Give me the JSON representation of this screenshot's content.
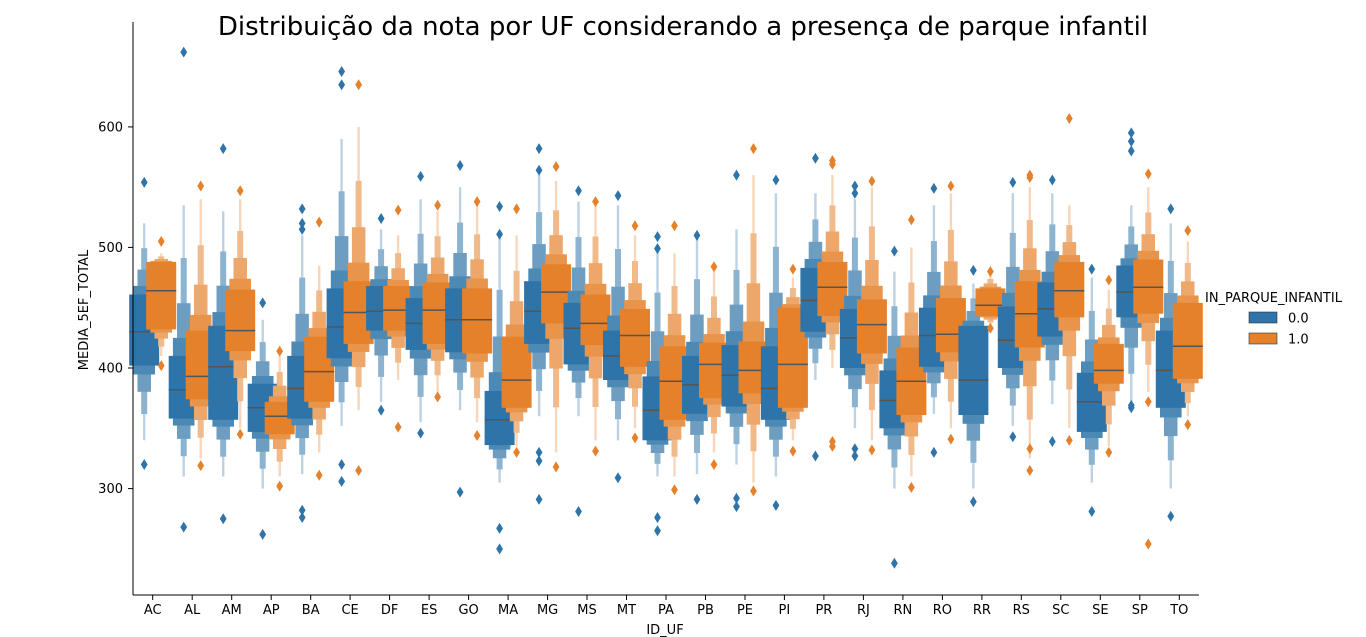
{
  "chart_data": {
    "type": "boxen",
    "title": "Distribuição da nota por UF considerando a presença de parque infantil",
    "xlabel": "ID_UF",
    "ylabel": "MEDIA_5EF_TOTAL",
    "ylim": [
      210,
      660
    ],
    "yticks": [
      300,
      400,
      500,
      600
    ],
    "grid": false,
    "legend": {
      "title": "IN_PARQUE_INFANTIL",
      "placement": "right"
    },
    "categories": [
      "AC",
      "AL",
      "AM",
      "AP",
      "BA",
      "CE",
      "DF",
      "ES",
      "GO",
      "MA",
      "MG",
      "MS",
      "MT",
      "PA",
      "PB",
      "PE",
      "PI",
      "PR",
      "RJ",
      "RN",
      "RO",
      "RR",
      "RS",
      "SC",
      "SE",
      "SP",
      "TO"
    ],
    "series": [
      {
        "name": "0.0",
        "color": "#2e74a8",
        "median": [
          430,
          382,
          401,
          367,
          383,
          434,
          447,
          437,
          440,
          357,
          447,
          433,
          410,
          365,
          386,
          394,
          383,
          456,
          425,
          373,
          427,
          390,
          423,
          449,
          372,
          463,
          398
        ],
        "q1": [
          402,
          358,
          357,
          347,
          358,
          408,
          431,
          415,
          413,
          336,
          420,
          403,
          390,
          340,
          362,
          368,
          357,
          430,
          400,
          350,
          401,
          361,
          400,
          426,
          347,
          442,
          367
        ],
        "q3": [
          461,
          410,
          435,
          387,
          410,
          466,
          468,
          458,
          466,
          381,
          472,
          454,
          431,
          393,
          410,
          419,
          418,
          483,
          449,
          398,
          450,
          435,
          451,
          471,
          396,
          485,
          431
        ],
        "whisker_low": [
          340,
          310,
          310,
          300,
          312,
          352,
          372,
          355,
          365,
          305,
          360,
          360,
          340,
          310,
          312,
          320,
          310,
          390,
          350,
          300,
          362,
          300,
          352,
          370,
          305,
          370,
          300
        ],
        "whisker_high": [
          520,
          535,
          530,
          440,
          510,
          590,
          515,
          540,
          550,
          510,
          560,
          538,
          535,
          500,
          508,
          515,
          545,
          545,
          540,
          480,
          535,
          470,
          545,
          545,
          475,
          535,
          520
        ],
        "outliers": [
          [
            554,
            320
          ],
          [
            662,
            268
          ],
          [
            582,
            275
          ],
          [
            454,
            262
          ],
          [
            532,
            520,
            515,
            282,
            276
          ],
          [
            646,
            635,
            320,
            306
          ],
          [
            524,
            365
          ],
          [
            559,
            346
          ],
          [
            568,
            297
          ],
          [
            534,
            511,
            267,
            250
          ],
          [
            582,
            564,
            330,
            323,
            291
          ],
          [
            547,
            281
          ],
          [
            543,
            309
          ],
          [
            509,
            499,
            276,
            265
          ],
          [
            510,
            291
          ],
          [
            560,
            292,
            285
          ],
          [
            556,
            286
          ],
          [
            574,
            327
          ],
          [
            551,
            545,
            333,
            327
          ],
          [
            497,
            238
          ],
          [
            549,
            330
          ],
          [
            481,
            289
          ],
          [
            554,
            343
          ],
          [
            556,
            339
          ],
          [
            482,
            281
          ],
          [
            595,
            588,
            580,
            369,
            367
          ],
          [
            532,
            277
          ]
        ]
      },
      {
        "name": "1.0",
        "color": "#e5812b",
        "median": [
          464,
          393,
          431,
          360,
          397,
          446,
          448,
          448,
          440,
          390,
          463,
          437,
          427,
          389,
          403,
          398,
          403,
          467,
          436,
          389,
          428,
          452,
          445,
          464,
          398,
          467,
          418
        ],
        "q1": [
          432,
          374,
          414,
          345,
          372,
          420,
          431,
          420,
          412,
          367,
          437,
          419,
          401,
          357,
          375,
          379,
          367,
          443,
          412,
          361,
          413,
          443,
          417,
          442,
          387,
          445,
          391
        ],
        "q3": [
          488,
          431,
          465,
          372,
          426,
          472,
          468,
          471,
          466,
          426,
          486,
          461,
          449,
          418,
          421,
          422,
          450,
          488,
          457,
          417,
          458,
          466,
          472,
          488,
          420,
          490,
          454
        ],
        "whisker_low": [
          410,
          325,
          350,
          310,
          330,
          365,
          390,
          380,
          355,
          335,
          330,
          340,
          350,
          310,
          330,
          305,
          340,
          400,
          340,
          310,
          350,
          435,
          325,
          350,
          335,
          380,
          360
        ],
        "whisker_high": [
          495,
          540,
          540,
          410,
          485,
          600,
          510,
          530,
          535,
          510,
          555,
          535,
          510,
          495,
          480,
          560,
          475,
          560,
          550,
          500,
          545,
          478,
          550,
          535,
          465,
          550,
          505
        ],
        "outliers": [
          [
            505,
            402
          ],
          [
            551,
            319
          ],
          [
            547,
            345
          ],
          [
            414,
            302
          ],
          [
            521,
            311
          ],
          [
            635,
            315
          ],
          [
            531,
            351
          ],
          [
            535,
            376
          ],
          [
            538,
            344
          ],
          [
            532,
            330
          ],
          [
            567,
            318
          ],
          [
            538,
            331
          ],
          [
            518,
            342
          ],
          [
            518,
            299
          ],
          [
            484,
            320
          ],
          [
            582,
            298
          ],
          [
            482,
            331
          ],
          [
            572,
            569,
            339,
            335
          ],
          [
            555,
            332
          ],
          [
            523,
            301
          ],
          [
            551,
            341
          ],
          [
            480,
            433
          ],
          [
            560,
            558,
            333,
            315
          ],
          [
            607,
            340
          ],
          [
            473,
            330
          ],
          [
            561,
            372,
            254
          ],
          [
            514,
            353
          ]
        ]
      }
    ]
  }
}
